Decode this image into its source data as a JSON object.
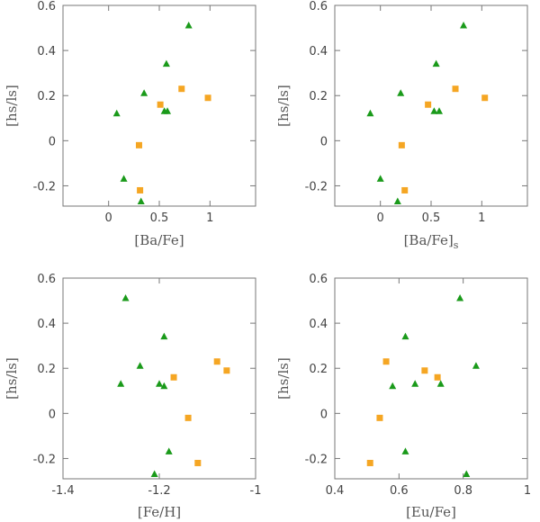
{
  "colors": {
    "star_series": "#1a9a1a",
    "square_series": "#f5a623",
    "axis": "#777777"
  },
  "chart_data": [
    {
      "type": "scatter",
      "xlabel": "[Ba/Fe]",
      "xlabel_subscript": "",
      "ylabel": "[hs/ls]",
      "xlim": [
        -0.45,
        1.45
      ],
      "ylim": [
        -0.29,
        0.6
      ],
      "xticks": [
        0,
        0.5,
        1
      ],
      "xtick_labels": [
        "0",
        "0.5",
        "1"
      ],
      "yticks": [
        -0.2,
        0,
        0.2,
        0.4,
        0.6
      ],
      "ytick_labels": [
        "-0.2",
        "0",
        "0.2",
        "0.4",
        "0.6"
      ],
      "series": [
        {
          "name": "triangles",
          "marker": "triangle",
          "points": [
            [
              0.08,
              0.12
            ],
            [
              0.15,
              -0.17
            ],
            [
              0.32,
              -0.27
            ],
            [
              0.35,
              0.21
            ],
            [
              0.55,
              0.13
            ],
            [
              0.57,
              0.34
            ],
            [
              0.58,
              0.13
            ],
            [
              0.79,
              0.51
            ]
          ]
        },
        {
          "name": "squares",
          "marker": "square",
          "points": [
            [
              0.3,
              -0.02
            ],
            [
              0.31,
              -0.22
            ],
            [
              0.51,
              0.16
            ],
            [
              0.72,
              0.23
            ],
            [
              0.98,
              0.19
            ]
          ]
        }
      ]
    },
    {
      "type": "scatter",
      "xlabel": "[Ba/Fe]",
      "xlabel_subscript": "s",
      "ylabel": "[hs/ls]",
      "xlim": [
        -0.45,
        1.45
      ],
      "ylim": [
        -0.29,
        0.6
      ],
      "xticks": [
        0,
        0.5,
        1
      ],
      "xtick_labels": [
        "0",
        "0.5",
        "1"
      ],
      "yticks": [
        -0.2,
        0,
        0.2,
        0.4,
        0.6
      ],
      "ytick_labels": [
        "-0.2",
        "0",
        "0.2",
        "0.4",
        "0.6"
      ],
      "series": [
        {
          "name": "triangles",
          "marker": "triangle",
          "points": [
            [
              -0.1,
              0.12
            ],
            [
              0.0,
              -0.17
            ],
            [
              0.17,
              -0.27
            ],
            [
              0.2,
              0.21
            ],
            [
              0.53,
              0.13
            ],
            [
              0.55,
              0.34
            ],
            [
              0.58,
              0.13
            ],
            [
              0.82,
              0.51
            ]
          ]
        },
        {
          "name": "squares",
          "marker": "square",
          "points": [
            [
              0.21,
              -0.02
            ],
            [
              0.24,
              -0.22
            ],
            [
              0.47,
              0.16
            ],
            [
              0.74,
              0.23
            ],
            [
              1.03,
              0.19
            ]
          ]
        }
      ]
    },
    {
      "type": "scatter",
      "xlabel": "[Fe/H]",
      "xlabel_subscript": "",
      "ylabel": "[hs/ls]",
      "xlim": [
        -1.4,
        -1.0
      ],
      "ylim": [
        -0.29,
        0.6
      ],
      "xticks": [
        -1.4,
        -1.2,
        -1.0
      ],
      "xtick_labels": [
        "-1.4",
        "-1.2",
        "-1"
      ],
      "yticks": [
        -0.2,
        0,
        0.2,
        0.4,
        0.6
      ],
      "ytick_labels": [
        "-0.2",
        "0",
        "0.2",
        "0.4",
        "0.6"
      ],
      "series": [
        {
          "name": "triangles",
          "marker": "triangle",
          "points": [
            [
              -1.28,
              0.13
            ],
            [
              -1.27,
              0.51
            ],
            [
              -1.24,
              0.21
            ],
            [
              -1.21,
              -0.27
            ],
            [
              -1.2,
              0.13
            ],
            [
              -1.19,
              0.34
            ],
            [
              -1.19,
              0.12
            ],
            [
              -1.18,
              -0.17
            ]
          ]
        },
        {
          "name": "squares",
          "marker": "square",
          "points": [
            [
              -1.17,
              0.16
            ],
            [
              -1.14,
              -0.02
            ],
            [
              -1.12,
              -0.22
            ],
            [
              -1.08,
              0.23
            ],
            [
              -1.06,
              0.19
            ]
          ]
        }
      ]
    },
    {
      "type": "scatter",
      "xlabel": "[Eu/Fe]",
      "xlabel_subscript": "",
      "ylabel": "[hs/ls]",
      "xlim": [
        0.4,
        1.0
      ],
      "ylim": [
        -0.29,
        0.6
      ],
      "xticks": [
        0.4,
        0.6,
        0.8,
        1.0
      ],
      "xtick_labels": [
        "0.4",
        "0.6",
        "0.8",
        "1"
      ],
      "yticks": [
        -0.2,
        0,
        0.2,
        0.4,
        0.6
      ],
      "ytick_labels": [
        "-0.2",
        "0",
        "0.2",
        "0.4",
        "0.6"
      ],
      "series": [
        {
          "name": "triangles",
          "marker": "triangle",
          "points": [
            [
              0.58,
              0.12
            ],
            [
              0.62,
              0.34
            ],
            [
              0.62,
              -0.17
            ],
            [
              0.65,
              0.13
            ],
            [
              0.73,
              0.13
            ],
            [
              0.79,
              0.51
            ],
            [
              0.81,
              -0.27
            ],
            [
              0.84,
              0.21
            ]
          ]
        },
        {
          "name": "squares",
          "marker": "square",
          "points": [
            [
              0.51,
              -0.22
            ],
            [
              0.54,
              -0.02
            ],
            [
              0.56,
              0.23
            ],
            [
              0.68,
              0.19
            ],
            [
              0.72,
              0.16
            ]
          ]
        }
      ]
    }
  ]
}
